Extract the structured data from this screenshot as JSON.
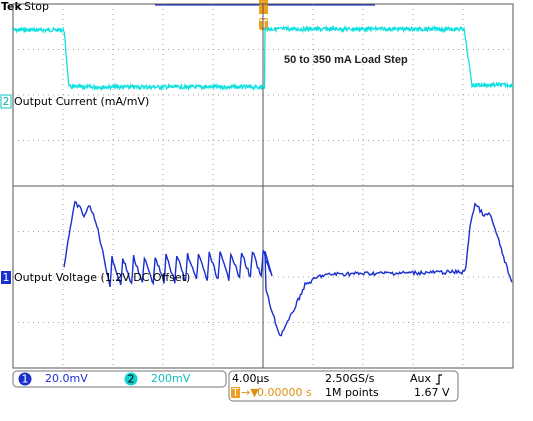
{
  "header": {
    "brand": "Tek",
    "status": "Stop"
  },
  "annotation": "50 to 350 mA Load Step",
  "traces": {
    "current_label": "Output Current (mA/mV)",
    "voltage_label": "Output Voltage (1.2V DC Offset)"
  },
  "markers": {
    "trigger": "T",
    "ch2": "2",
    "ch1": "1"
  },
  "status_bar": {
    "ch1": {
      "number": "1",
      "scale": "20.0mV"
    },
    "ch2": {
      "number": "2",
      "scale": "200mV"
    },
    "timebase": "4.00µs",
    "sample_rate": "2.50GS/s",
    "trigger_source": "Aux",
    "trigger_marker": "T",
    "trigger_position": "0.00000 s",
    "record_length": "1M points",
    "trigger_level": "1.67 V"
  }
}
